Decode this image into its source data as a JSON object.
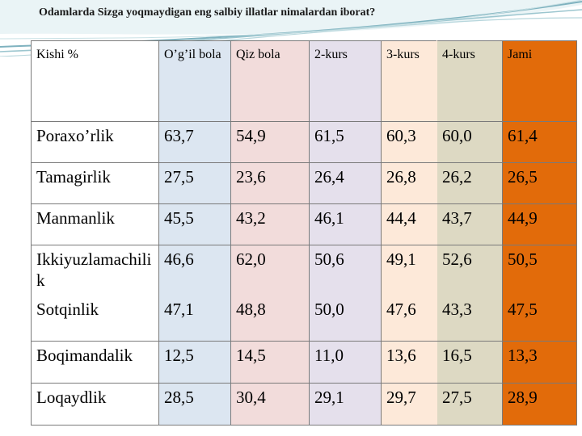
{
  "title": "Odamlarda Sizga yoqmaydigan eng salbiy illatlar nimalardan iborat?",
  "colors": {
    "col_label": "#ffffff",
    "col_boy": "#dce6f1",
    "col_girl": "#f2dcdb",
    "col_2kurs": "#e5e0ec",
    "col_3kurs": "#fde9d9",
    "col_4kurs": "#ddd9c3",
    "col_total": "#e26b0a"
  },
  "headers": [
    "Kishi %",
    "O’g’il bola",
    "Qiz bola",
    "2-kurs",
    "3-kurs",
    "4-kurs",
    "Jami"
  ],
  "rows": [
    [
      "Poraxo’rlik",
      "63,7",
      "54,9",
      "61,5",
      "60,3",
      "60,0",
      "61,4"
    ],
    [
      "Tamagirlik",
      "27,5",
      "23,6",
      "26,4",
      "26,8",
      "26,2",
      "26,5"
    ],
    [
      "Manmanlik",
      "45,5",
      "43,2",
      "46,1",
      "44,4",
      "43,7",
      "44,9"
    ],
    [
      "Ikkiyuzlamachilik",
      "46,6",
      "62,0",
      "50,6",
      "49,1",
      "52,6",
      "50,5"
    ],
    [
      "Sotqinlik",
      "47,1",
      "48,8",
      "50,0",
      "47,6",
      "43,3",
      "47,5"
    ],
    [
      "Boqimandalik",
      "12,5",
      "14,5",
      "11,0",
      "13,6",
      "16,5",
      "13,3"
    ],
    [
      "Loqaydlik",
      "28,5",
      "30,4",
      "29,1",
      "29,7",
      "27,5",
      "28,9"
    ]
  ]
}
